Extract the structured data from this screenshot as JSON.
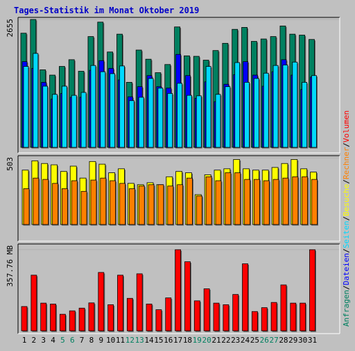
{
  "title": "Tages-Statistik im Monat Oktober 2019",
  "colors": {
    "page_bg": "#c0c0c0",
    "title": "#0000c8",
    "hits": "#008060",
    "files": "#0000ff",
    "pages": "#00d8ff",
    "visits": "#ffff00",
    "sites": "#ff8000",
    "kbytes": "#ff0000",
    "weekend_label": "#008060"
  },
  "chart_data": [
    {
      "type": "bar",
      "panel": "requests",
      "ymax_label": "2655",
      "ylim": [
        0,
        2655
      ],
      "categories": [
        "1",
        "2",
        "3",
        "4",
        "5",
        "6",
        "7",
        "8",
        "9",
        "10",
        "11",
        "12",
        "13",
        "14",
        "15",
        "16",
        "17",
        "18",
        "19",
        "20",
        "21",
        "22",
        "23",
        "24",
        "25",
        "26",
        "27",
        "28",
        "29",
        "30",
        "31"
      ],
      "weekend_days": [
        "5",
        "6",
        "12",
        "13",
        "19",
        "20",
        "26",
        "27"
      ],
      "series": [
        {
          "name": "Anfragen",
          "values": [
            2370,
            2655,
            1610,
            1500,
            1680,
            1820,
            1580,
            2300,
            2600,
            1980,
            2350,
            1350,
            2020,
            1830,
            1550,
            1720,
            2500,
            1900,
            1890,
            1810,
            2010,
            2160,
            2450,
            2490,
            2200,
            2250,
            2300,
            2520,
            2350,
            2330,
            2240
          ]
        },
        {
          "name": "Dateien",
          "values": [
            1780,
            1640,
            1350,
            1000,
            1120,
            1040,
            1040,
            1600,
            1800,
            1640,
            1400,
            1050,
            1260,
            1490,
            1260,
            1230,
            1930,
            1490,
            1020,
            1360,
            950,
            1310,
            1510,
            1780,
            1500,
            1270,
            1570,
            1820,
            1500,
            1200,
            1460
          ]
        },
        {
          "name": "Seiten",
          "values": [
            1680,
            1950,
            1270,
            1100,
            1270,
            1080,
            1140,
            1700,
            1570,
            1530,
            1690,
            970,
            1040,
            1430,
            1230,
            1120,
            1330,
            1080,
            1070,
            1680,
            1100,
            1260,
            1760,
            1350,
            1430,
            1540,
            1700,
            1710,
            1770,
            1350,
            1490
          ]
        }
      ]
    },
    {
      "type": "bar",
      "panel": "visits",
      "ymax_label": "503",
      "ylim": [
        0,
        503
      ],
      "categories": [
        "1",
        "2",
        "3",
        "4",
        "5",
        "6",
        "7",
        "8",
        "9",
        "10",
        "11",
        "12",
        "13",
        "14",
        "15",
        "16",
        "17",
        "18",
        "19",
        "20",
        "21",
        "22",
        "23",
        "24",
        "25",
        "26",
        "27",
        "28",
        "29",
        "30",
        "31"
      ],
      "series": [
        {
          "name": "Besuche",
          "values": [
            410,
            480,
            460,
            450,
            400,
            440,
            350,
            475,
            455,
            390,
            420,
            310,
            300,
            315,
            300,
            360,
            400,
            390,
            225,
            375,
            410,
            420,
            490,
            420,
            410,
            410,
            430,
            460,
            490,
            420,
            395
          ]
        },
        {
          "name": "Rechner",
          "values": [
            270,
            350,
            340,
            310,
            270,
            330,
            250,
            335,
            350,
            330,
            310,
            270,
            290,
            300,
            300,
            290,
            300,
            350,
            215,
            360,
            330,
            390,
            390,
            340,
            340,
            330,
            340,
            350,
            360,
            360,
            340
          ]
        }
      ]
    },
    {
      "type": "bar",
      "panel": "volume",
      "ymax_label": "357.76 MB",
      "unit": "MB",
      "ylim": [
        0,
        357.76
      ],
      "categories": [
        "1",
        "2",
        "3",
        "4",
        "5",
        "6",
        "7",
        "8",
        "9",
        "10",
        "11",
        "12",
        "13",
        "14",
        "15",
        "16",
        "17",
        "18",
        "19",
        "20",
        "21",
        "22",
        "23",
        "24",
        "25",
        "26",
        "27",
        "28",
        "29",
        "30",
        "31"
      ],
      "series": [
        {
          "name": "Volumen",
          "values": [
            107,
            245,
            122,
            118,
            73,
            88,
            100,
            123,
            257,
            115,
            245,
            143,
            251,
            118,
            93,
            145,
            357,
            304,
            132,
            185,
            122,
            115,
            160,
            295,
            85,
            102,
            125,
            202,
            122,
            122,
            357
          ]
        }
      ]
    }
  ],
  "legend_right": {
    "panel1": [
      {
        "text": "Anfragen",
        "color": "#008060"
      },
      {
        "text": "/",
        "color": "#000000"
      },
      {
        "text": "Dateien",
        "color": "#0000ff"
      },
      {
        "text": "/",
        "color": "#000000"
      },
      {
        "text": "Seiten",
        "color": "#00d8ff"
      },
      {
        "text": "/",
        "color": "#000000"
      },
      {
        "text": "Besuche",
        "color": "#ffff00"
      },
      {
        "text": "/",
        "color": "#000000"
      },
      {
        "text": "Rechner",
        "color": "#ff8000"
      },
      {
        "text": "/",
        "color": "#000000"
      },
      {
        "text": "Volumen",
        "color": "#ff0000"
      }
    ]
  }
}
